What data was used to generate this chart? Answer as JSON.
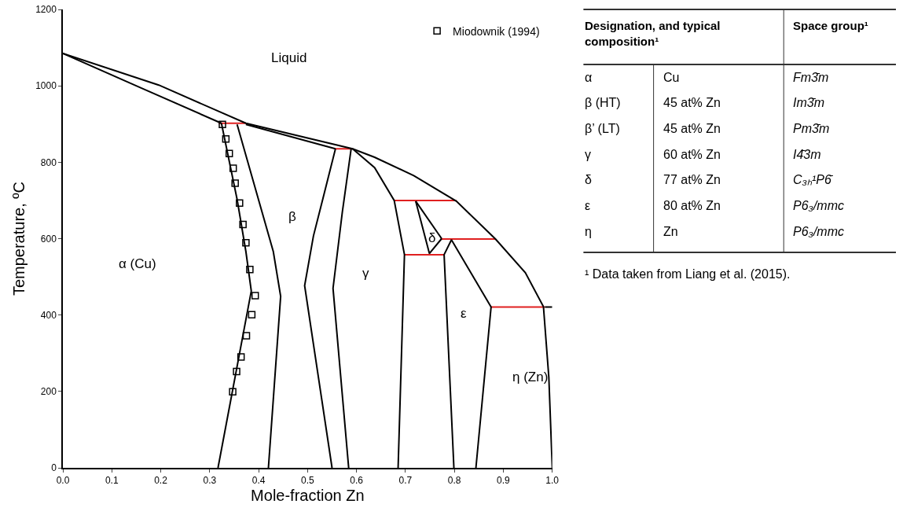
{
  "chart_data": [
    {
      "type": "line",
      "xlabel": "Mole-fraction Zn",
      "ylabel": "Temperature, ºC",
      "xlim": [
        0,
        1
      ],
      "ylim": [
        0,
        1200
      ],
      "xticks": [
        {
          "value": 0,
          "label": "0.0"
        },
        {
          "value": 0.1,
          "label": "0.1"
        },
        {
          "value": 0.2,
          "label": "0.2"
        },
        {
          "value": 0.3,
          "label": "0.3"
        },
        {
          "value": 0.4,
          "label": "0.4"
        },
        {
          "value": 0.5,
          "label": "0.5"
        },
        {
          "value": 0.6,
          "label": "0.6"
        },
        {
          "value": 0.7,
          "label": "0.7"
        },
        {
          "value": 0.8,
          "label": "0.8"
        },
        {
          "value": 0.9,
          "label": "0.9"
        },
        {
          "value": 1.0,
          "label": "1.0"
        }
      ],
      "yticks": [
        0,
        200,
        400,
        600,
        800,
        1000,
        1200
      ],
      "legend": "top right",
      "marker": "none",
      "line_style": "solid",
      "series": [
        {
          "color": "#e02020",
          "x": [
            0.318,
            0.374
          ],
          "values": [
            902,
            902
          ]
        },
        {
          "color": "#e02020",
          "x": [
            0.557,
            0.592
          ],
          "values": [
            835,
            835
          ]
        },
        {
          "color": "#e02020",
          "x": [
            0.677,
            0.804
          ],
          "values": [
            700,
            700
          ]
        },
        {
          "color": "#e02020",
          "x": [
            0.772,
            0.884
          ],
          "values": [
            599,
            599
          ]
        },
        {
          "color": "#e02020",
          "x": [
            0.698,
            0.779
          ],
          "values": [
            558,
            558
          ]
        },
        {
          "color": "#e02020",
          "x": [
            0.875,
            0.985
          ],
          "values": [
            421,
            421
          ]
        },
        {
          "color": "#000000",
          "x": [
            0,
            0.196,
            0.374,
            0.592,
            0.637,
            0.717,
            0.804,
            0.884,
            0.945,
            0.982,
            0.993,
            1.0
          ],
          "values": [
            1085,
            1002,
            902,
            835,
            813,
            765,
            698,
            599,
            511,
            422,
            237,
            0
          ]
        },
        {
          "color": "#000000",
          "x": [
            0,
            0.159,
            0.324
          ],
          "values": [
            1085,
            995,
            902
          ]
        },
        {
          "color": "#000000",
          "x": [
            0.374,
            0.557
          ],
          "values": [
            899,
            835
          ]
        },
        {
          "color": "#000000",
          "x": [
            0.324,
            0.356,
            0.374,
            0.385,
            0.317
          ],
          "values": [
            902,
            703,
            566,
            463,
            0
          ]
        },
        {
          "color": "#000000",
          "x": [
            0.356,
            0.43,
            0.445,
            0.42
          ],
          "values": [
            899,
            566,
            449,
            0
          ]
        },
        {
          "color": "#000000",
          "x": [
            0.557,
            0.531,
            0.512,
            0.494,
            0.55
          ],
          "values": [
            835,
            703,
            607,
            477,
            0
          ]
        },
        {
          "color": "#000000",
          "x": [
            0.589,
            0.571,
            0.552,
            0.584
          ],
          "values": [
            835,
            669,
            470,
            0
          ]
        },
        {
          "color": "#000000",
          "x": [
            0.592,
            0.637,
            0.677,
            0.698,
            0.685
          ],
          "values": [
            835,
            786,
            700,
            558,
            0
          ]
        },
        {
          "color": "#000000",
          "x": [
            0.985,
            1.0
          ],
          "values": [
            421,
            421
          ]
        },
        {
          "color": "#000000",
          "x": [
            0.721,
            0.749,
            0.774
          ],
          "values": [
            698,
            561,
            600
          ]
        },
        {
          "color": "#000000",
          "x": [
            0.721,
            0.774
          ],
          "values": [
            698,
            600
          ]
        },
        {
          "color": "#000000",
          "x": [
            0.799,
            0.779,
            0.794,
            0.875,
            0.844
          ],
          "values": [
            0,
            558,
            597,
            421,
            0
          ]
        },
        {
          "type": "scatter",
          "name": "Miodownik (1994)",
          "color": "#000000",
          "marker": "square",
          "x": [
            0.326,
            0.333,
            0.34,
            0.348,
            0.352,
            0.361,
            0.368,
            0.374,
            0.382,
            0.393,
            0.386,
            0.375,
            0.364,
            0.355,
            0.347
          ],
          "values": [
            899,
            861,
            823,
            784,
            745,
            693,
            637,
            589,
            519,
            451,
            401,
            346,
            290,
            252,
            199
          ]
        }
      ],
      "annotations": [
        "Liquid",
        "α (Cu)",
        "β",
        "γ",
        "δ",
        "ε",
        "η (Zn)"
      ]
    },
    {
      "type": "other",
      "categories": [
        "Designation, and typical composition¹",
        "Space group¹"
      ],
      "cells": [
        [
          "α",
          "Cu",
          "Fm3̄m"
        ],
        [
          "β (HT)",
          "45 at% Zn",
          "Im3̄m"
        ],
        [
          "β’ (LT)",
          "45 at% Zn",
          "Pm3̄m"
        ],
        [
          "γ",
          "60 at% Zn",
          "I4̄3m"
        ],
        [
          "δ",
          "77 at% Zn",
          "C₃ₕ¹P6̄"
        ],
        [
          "ε",
          "80 at% Zn",
          "P6₃/mmc"
        ],
        [
          "η",
          "Zn",
          "P6₃/mmc"
        ]
      ],
      "annotations": [
        "¹ Data taken from Liang et al. (2015)."
      ]
    }
  ]
}
